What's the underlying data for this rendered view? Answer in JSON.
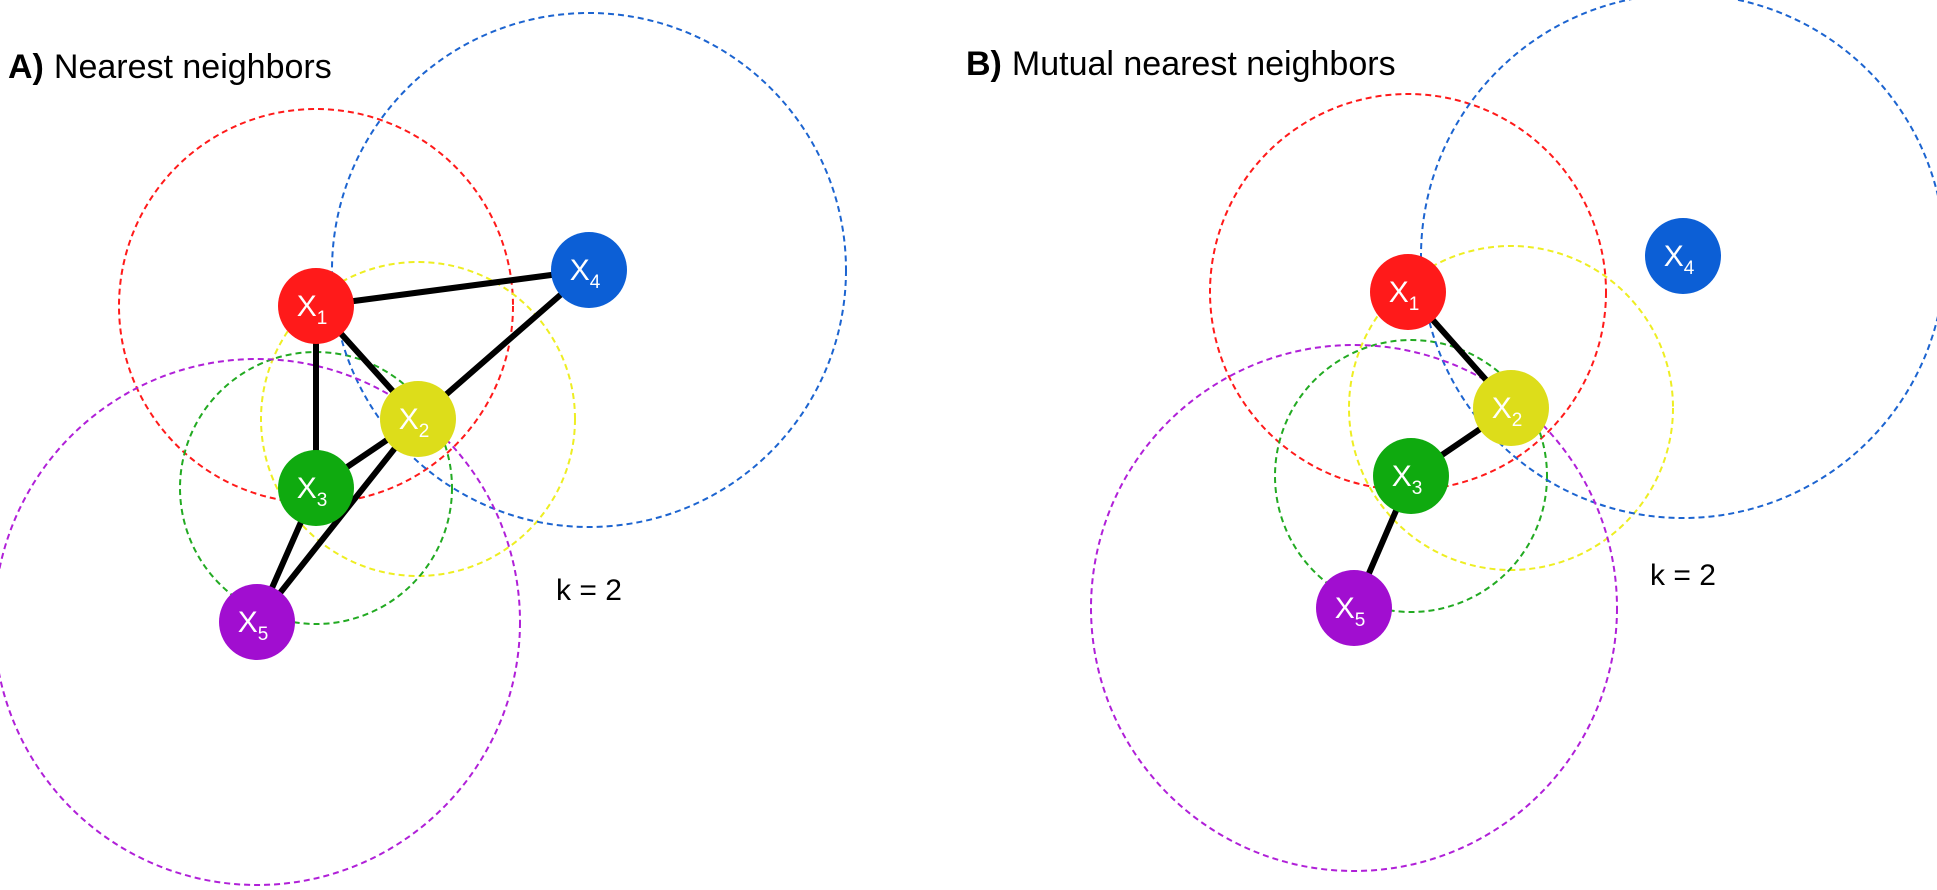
{
  "panels": [
    {
      "id": "A",
      "letter": "A)",
      "title": "Nearest neighbors",
      "k_label": "k = 2",
      "nodes": [
        {
          "id": "1",
          "letter": "X",
          "sub": "1",
          "color": "#ff1a1a",
          "circle_color": "#ff1a1a"
        },
        {
          "id": "2",
          "letter": "X",
          "sub": "2",
          "color": "#dddd1a",
          "circle_color": "#eeee22"
        },
        {
          "id": "3",
          "letter": "X",
          "sub": "3",
          "color": "#0faa0f",
          "circle_color": "#22aa22"
        },
        {
          "id": "4",
          "letter": "X",
          "sub": "4",
          "color": "#0c5fd6",
          "circle_color": "#1c64d0"
        },
        {
          "id": "5",
          "letter": "X",
          "sub": "5",
          "color": "#a10ed0",
          "circle_color": "#b020d8"
        }
      ],
      "edges": [
        [
          "1",
          "4"
        ],
        [
          "1",
          "2"
        ],
        [
          "1",
          "3"
        ],
        [
          "2",
          "3"
        ],
        [
          "2",
          "4"
        ],
        [
          "2",
          "5"
        ],
        [
          "3",
          "5"
        ]
      ]
    },
    {
      "id": "B",
      "letter": "B)",
      "title": "Mutual nearest neighbors",
      "k_label": "k = 2",
      "nodes": [
        {
          "id": "1",
          "letter": "X",
          "sub": "1",
          "color": "#ff1a1a",
          "circle_color": "#ff1a1a"
        },
        {
          "id": "2",
          "letter": "X",
          "sub": "2",
          "color": "#dddd1a",
          "circle_color": "#eeee22"
        },
        {
          "id": "3",
          "letter": "X",
          "sub": "3",
          "color": "#0faa0f",
          "circle_color": "#22aa22"
        },
        {
          "id": "4",
          "letter": "X",
          "sub": "4",
          "color": "#0c5fd6",
          "circle_color": "#1c64d0"
        },
        {
          "id": "5",
          "letter": "X",
          "sub": "5",
          "color": "#a10ed0",
          "circle_color": "#b020d8"
        }
      ],
      "edges": [
        [
          "1",
          "2"
        ],
        [
          "2",
          "3"
        ],
        [
          "3",
          "5"
        ]
      ]
    }
  ]
}
